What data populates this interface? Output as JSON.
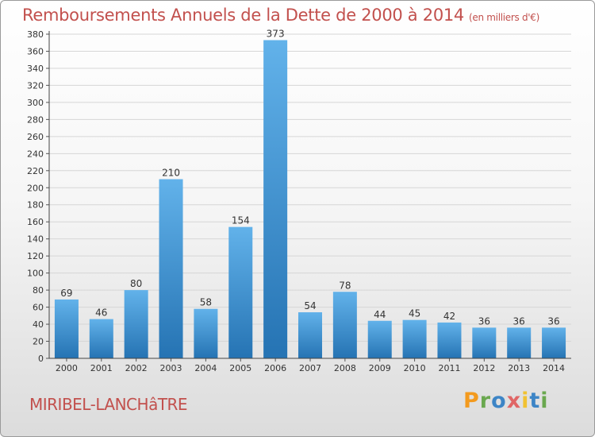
{
  "title": "Remboursements Annuels de la Dette de 2000 à 2014",
  "unit": "(en milliers d'€)",
  "town": "MIRIBEL-LANCHâTRE",
  "logo": [
    "P",
    "r",
    "o",
    "x",
    "i",
    "t",
    "i"
  ],
  "colors": {
    "title": "#c2504d",
    "bar_light": "#62b2ea",
    "bar_dark": "#2573b3",
    "logo": [
      "#f39a1e",
      "#6aa84f",
      "#3d85c6",
      "#e06666",
      "#f1c232",
      "#3d85c6",
      "#6aa84f"
    ]
  },
  "chart_data": {
    "type": "bar",
    "categories": [
      "2000",
      "2001",
      "2002",
      "2003",
      "2004",
      "2005",
      "2006",
      "2007",
      "2008",
      "2009",
      "2010",
      "2011",
      "2012",
      "2013",
      "2014"
    ],
    "values": [
      69,
      46,
      80,
      210,
      58,
      154,
      373,
      54,
      78,
      44,
      45,
      42,
      36,
      36,
      36
    ],
    "ylim": [
      0,
      380
    ],
    "ytick_step": 20,
    "grid": true,
    "xlabel": "",
    "ylabel": ""
  }
}
